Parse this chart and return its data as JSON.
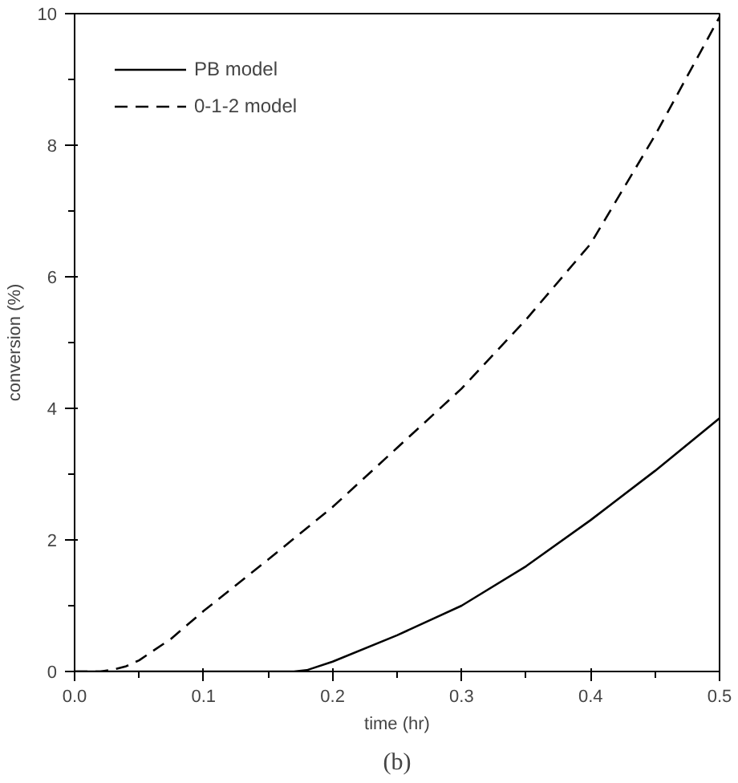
{
  "chart_data": {
    "type": "line",
    "xlabel": "time (hr)",
    "ylabel": "conversion (%)",
    "annotations": [
      "(b)"
    ],
    "xlim": [
      0,
      0.5
    ],
    "ylim": [
      0,
      10
    ],
    "xticks": [
      {
        "value": 0,
        "label": "0.0"
      },
      0.1,
      0.2,
      0.3,
      0.4,
      0.5
    ],
    "yticks": [
      0,
      2,
      4,
      6,
      8,
      10
    ],
    "grid": false,
    "legend": "top left",
    "marker": "none",
    "series": [
      {
        "name": "PB model",
        "color": "#000000",
        "line_style": "solid",
        "x": [
          0,
          0.1,
          0.17,
          0.18,
          0.2,
          0.25,
          0.3,
          0.35,
          0.4,
          0.45,
          0.5
        ],
        "values": [
          0,
          0,
          0,
          0.02,
          0.15,
          0.55,
          1.0,
          1.6,
          2.3,
          3.05,
          3.85
        ]
      },
      {
        "name": "0-1-2 model",
        "color": "#000000",
        "line_style": "dashed",
        "x": [
          0,
          0.02,
          0.03,
          0.04,
          0.05,
          0.075,
          0.1,
          0.15,
          0.2,
          0.25,
          0.3,
          0.35,
          0.4,
          0.45,
          0.5
        ],
        "values": [
          0,
          0,
          0.03,
          0.08,
          0.17,
          0.5,
          0.92,
          1.7,
          2.5,
          3.4,
          4.3,
          5.35,
          6.5,
          8.15,
          9.95
        ]
      }
    ]
  }
}
